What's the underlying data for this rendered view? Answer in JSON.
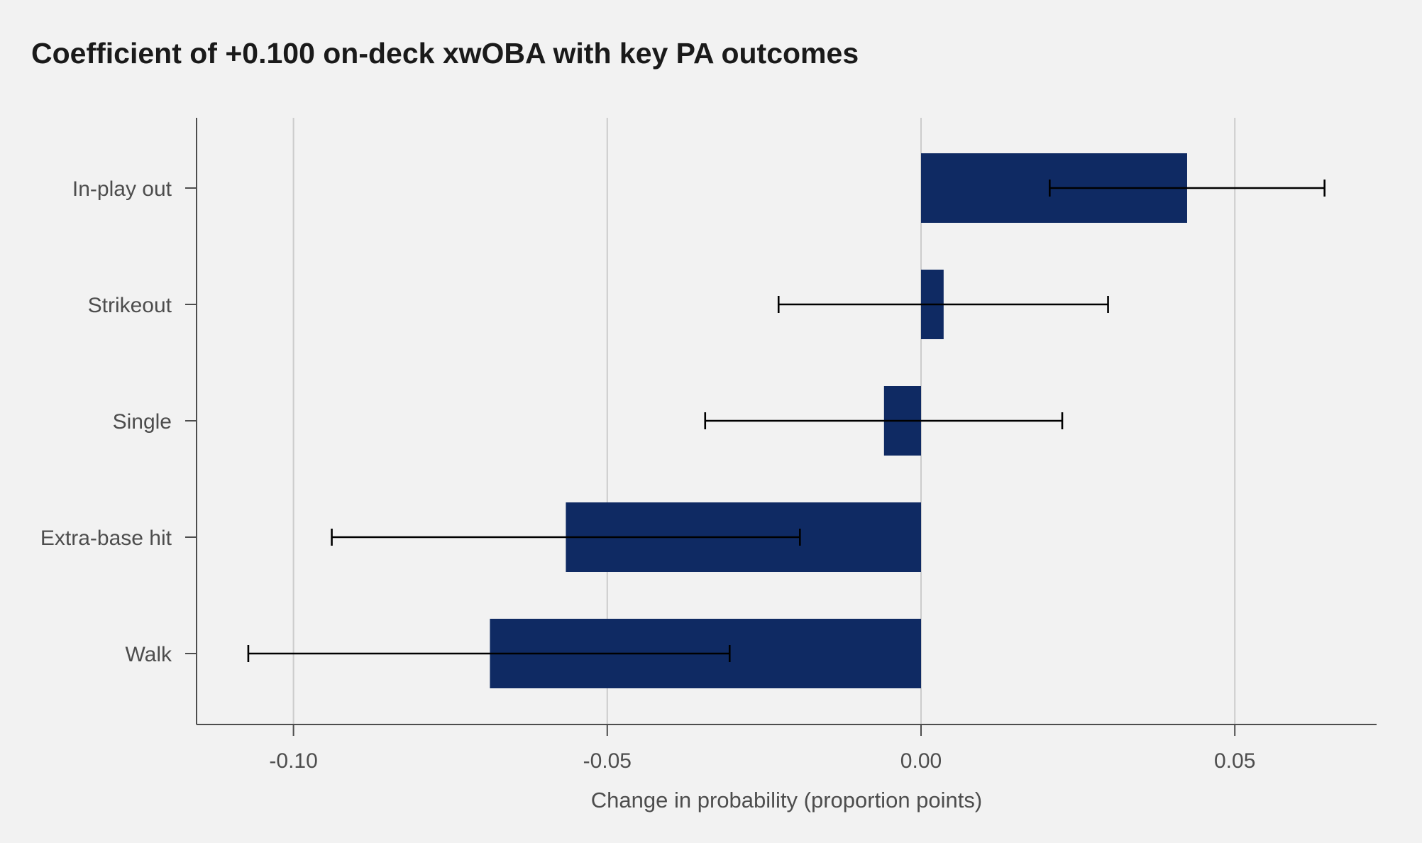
{
  "chart_data": {
    "type": "bar",
    "orientation": "horizontal",
    "title": "Coefficient of +0.100 on-deck xwOBA with key PA outcomes",
    "xlabel": "Change in probability (proportion points)",
    "ylabel": "",
    "xlim": [
      -0.1155,
      0.0725
    ],
    "xticks": [
      -0.1,
      -0.05,
      0.0,
      0.05
    ],
    "xtick_labels": [
      "-0.10",
      "-0.05",
      "0.00",
      "0.05"
    ],
    "grid": "vertical",
    "bar_color": "#0f2a63",
    "categories": [
      "In-play out",
      "Strikeout",
      "Single",
      "Extra-base hit",
      "Walk"
    ],
    "values": [
      0.0424,
      0.0036,
      -0.0059,
      -0.0566,
      -0.0687
    ],
    "ci_low": [
      0.0205,
      -0.0227,
      -0.0344,
      -0.0939,
      -0.1072
    ],
    "ci_high": [
      0.0643,
      0.0298,
      0.0225,
      -0.0193,
      -0.0305
    ]
  }
}
